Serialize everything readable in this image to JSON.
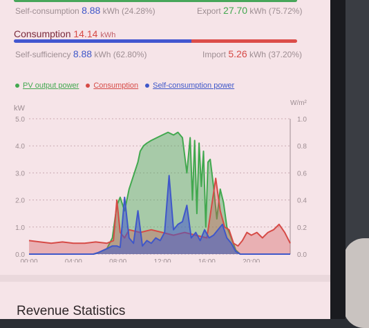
{
  "summary": {
    "self_consumption_label": "Self-consumption",
    "self_consumption_value": "8.88",
    "self_consumption_unit": "kWh (24.28%)",
    "export_label": "Export",
    "export_value": "27.70",
    "export_unit": "kWh (75.72%)",
    "consumption_label": "Consumption",
    "consumption_value": "14.14",
    "consumption_unit": "kWh",
    "self_sufficiency_label": "Self-sufficiency",
    "self_sufficiency_value": "8.88",
    "self_sufficiency_unit": "kWh (62.80%)",
    "import_label": "Import",
    "import_value": "5.26",
    "import_unit": "kWh (37.20%)",
    "self_sufficiency_fraction": 0.628
  },
  "legend": {
    "pv": "PV output power",
    "consumption": "Consumption",
    "self_consumption": "Self-consumption power"
  },
  "colors": {
    "green": "#42a84f",
    "red": "#d64a46",
    "blue": "#3f57c9"
  },
  "chart_data": {
    "type": "area",
    "ylabel_left": "kW",
    "ylabel_right": "W/m²",
    "ylim": [
      0,
      5
    ],
    "ylim_right": [
      0,
      1
    ],
    "yticks_left": [
      "0.0",
      "1.0",
      "2.0",
      "3.0",
      "4.0",
      "5.0"
    ],
    "yticks_right": [
      "0.0",
      "0.2",
      "0.4",
      "0.6",
      "0.8",
      "1.0"
    ],
    "xticks": [
      "00:00",
      "04:00",
      "08:00",
      "12:00",
      "16:00",
      "20:00"
    ],
    "xlim_hours": [
      0,
      23.5
    ],
    "grid": true,
    "series": [
      {
        "name": "PV output power",
        "x": [
          0,
          5.8,
          6.2,
          7,
          7.5,
          7.9,
          8.2,
          8.6,
          9,
          9.4,
          9.8,
          10,
          10.3,
          10.6,
          11,
          11.5,
          12,
          12.5,
          13,
          13.4,
          13.8,
          14.2,
          14.5,
          14.7,
          14.9,
          15.1,
          15.3,
          15.5,
          15.7,
          15.9,
          16.1,
          16.3,
          16.6,
          16.9,
          17.2,
          17.5,
          17.8,
          18.2,
          18.6,
          19,
          23.5
        ],
        "y": [
          0,
          0,
          0.05,
          0.2,
          0.6,
          1.8,
          2.1,
          1.6,
          2.4,
          2.9,
          3.4,
          3.8,
          4.0,
          4.1,
          4.2,
          4.3,
          4.4,
          4.5,
          4.4,
          4.5,
          4.3,
          3.0,
          4.3,
          2.0,
          4.2,
          1.5,
          4.1,
          2.5,
          3.8,
          1.0,
          3.4,
          3.5,
          2.5,
          1.3,
          2.4,
          1.9,
          1.0,
          0.6,
          0.15,
          0,
          0
        ]
      },
      {
        "name": "Consumption",
        "x": [
          0,
          1,
          2,
          3,
          4,
          5,
          6,
          7,
          7.6,
          7.9,
          8.2,
          8.6,
          9,
          10,
          11,
          12,
          13,
          14,
          15,
          16,
          16.8,
          17.2,
          17.6,
          18,
          18.4,
          18.8,
          19.2,
          19.6,
          20,
          20.5,
          21,
          21.5,
          22,
          22.5,
          23,
          23.5
        ],
        "y": [
          0.5,
          0.45,
          0.4,
          0.45,
          0.4,
          0.4,
          0.45,
          0.4,
          0.5,
          2.0,
          0.8,
          0.6,
          0.9,
          0.8,
          0.9,
          0.8,
          0.7,
          0.8,
          0.7,
          0.6,
          2.8,
          1.6,
          1.0,
          0.9,
          0.4,
          0.3,
          0.5,
          0.8,
          0.7,
          0.8,
          0.6,
          0.8,
          0.9,
          1.1,
          0.8,
          0.4
        ]
      },
      {
        "name": "Self-consumption power",
        "x": [
          0,
          5.8,
          6.2,
          7,
          7.5,
          7.9,
          8.2,
          8.6,
          9,
          9.4,
          9.8,
          10.2,
          10.6,
          11,
          11.4,
          11.8,
          12.2,
          12.6,
          13,
          13.4,
          13.8,
          14.2,
          14.6,
          15,
          15.4,
          15.8,
          16.2,
          16.6,
          17,
          17.4,
          17.8,
          18.2,
          18.6,
          19,
          23.5
        ],
        "y": [
          0,
          0,
          0.05,
          0.2,
          0.3,
          0.3,
          0.25,
          2.1,
          0.6,
          0.4,
          1.6,
          0.3,
          0.5,
          0.4,
          0.6,
          0.5,
          0.8,
          2.9,
          0.9,
          1.1,
          1.2,
          1.8,
          0.6,
          0.8,
          0.5,
          0.9,
          0.6,
          0.7,
          0.9,
          1.1,
          0.6,
          0.4,
          0.1,
          0,
          0
        ]
      }
    ]
  }
}
